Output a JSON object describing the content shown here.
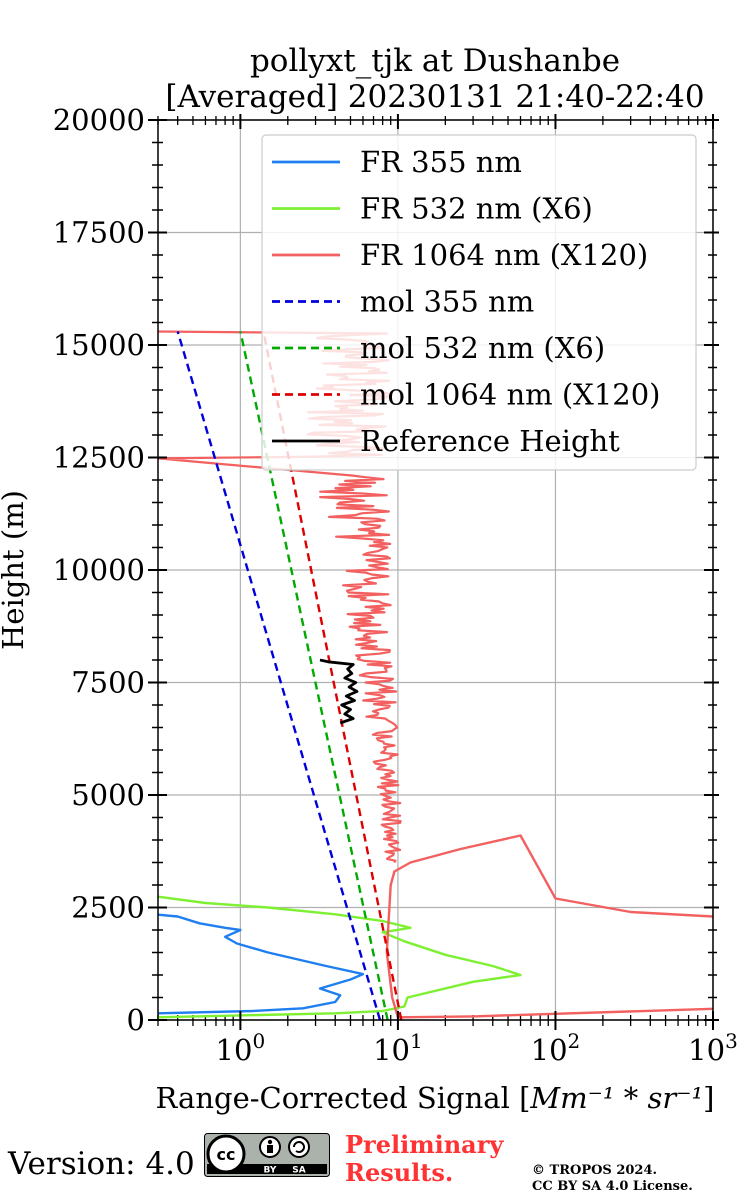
{
  "chart_data": {
    "type": "line",
    "title_line1": "pollyxt_tjk at Dushanbe",
    "title_line2": "[Averaged] 20230131 21:40-22:40",
    "xlabel_text": "Range-Corrected Signal [",
    "xlabel_units": "Mm⁻¹ * sr⁻¹",
    "xlabel_close": "]",
    "ylabel": "Height (m)",
    "xscale": "log",
    "xlim": [
      0.3,
      1000
    ],
    "ylim": [
      0,
      20000
    ],
    "x_ticks": [
      {
        "value": 1,
        "base": "10",
        "exp": "0"
      },
      {
        "value": 10,
        "base": "10",
        "exp": "1"
      },
      {
        "value": 100,
        "base": "10",
        "exp": "2"
      },
      {
        "value": 1000,
        "base": "10",
        "exp": "3"
      }
    ],
    "y_ticks": [
      "0",
      "2500",
      "5000",
      "7500",
      "10000",
      "12500",
      "15000",
      "17500",
      "20000"
    ],
    "grid": true,
    "legend_position": "upper-right",
    "series": [
      {
        "name": "FR 355 nm",
        "color": "#1f7ff0",
        "style": "solid",
        "points": [
          [
            0.3,
            150
          ],
          [
            1.2,
            200
          ],
          [
            2.5,
            260
          ],
          [
            4.0,
            400
          ],
          [
            4.3,
            550
          ],
          [
            3.2,
            700
          ],
          [
            5.0,
            900
          ],
          [
            6.0,
            1020
          ],
          [
            3.5,
            1200
          ],
          [
            1.5,
            1500
          ],
          [
            0.95,
            1700
          ],
          [
            0.8,
            1850
          ],
          [
            1.0,
            2000
          ],
          [
            0.8,
            2050
          ],
          [
            0.55,
            2150
          ],
          [
            0.4,
            2300
          ],
          [
            0.3,
            2340
          ]
        ]
      },
      {
        "name": "FR 532 nm (X6)",
        "color": "#7ef032",
        "style": "solid",
        "points": [
          [
            0.3,
            60
          ],
          [
            4.0,
            150
          ],
          [
            8.0,
            200
          ],
          [
            11.0,
            300
          ],
          [
            11.5,
            500
          ],
          [
            30.0,
            850
          ],
          [
            60.0,
            1000
          ],
          [
            40.0,
            1200
          ],
          [
            20.0,
            1450
          ],
          [
            11.0,
            1750
          ],
          [
            8.0,
            1950
          ],
          [
            12.0,
            2050
          ],
          [
            8.0,
            2200
          ],
          [
            4.0,
            2350
          ],
          [
            1.5,
            2500
          ],
          [
            0.6,
            2600
          ],
          [
            0.3,
            2740
          ]
        ]
      },
      {
        "name": "FR 1064 nm (X120)",
        "color": "#f26060",
        "style": "solid",
        "points": [
          [
            1000,
            250
          ],
          [
            30,
            80
          ],
          [
            10,
            60
          ],
          [
            9.2,
            500
          ],
          [
            8.5,
            1500
          ],
          [
            9.0,
            3000
          ],
          [
            9.5,
            3300
          ],
          [
            12,
            3500
          ],
          [
            25,
            3800
          ],
          [
            60,
            4100
          ],
          [
            100,
            2700
          ],
          [
            300,
            2400
          ],
          [
            1000,
            2300
          ]
        ]
      },
      {
        "name": "mol 355 nm",
        "color": "#0000dd",
        "style": "dashed",
        "points": [
          [
            7.7,
            0
          ],
          [
            0.4,
            15300
          ]
        ]
      },
      {
        "name": "mol 532 nm (X6)",
        "color": "#00aa00",
        "style": "dashed",
        "points": [
          [
            8.6,
            0
          ],
          [
            1.0,
            15300
          ]
        ]
      },
      {
        "name": "mol 1064 nm (X120)",
        "color": "#dd0000",
        "style": "dashed",
        "points": [
          [
            10.5,
            0
          ],
          [
            1.4,
            15300
          ]
        ]
      },
      {
        "name": "Reference Height",
        "color": "#000000",
        "style": "solid",
        "points": [
          [
            4.3,
            6600
          ],
          [
            5.2,
            6700
          ],
          [
            4.6,
            6800
          ],
          [
            5.0,
            6900
          ],
          [
            4.4,
            7000
          ],
          [
            5.3,
            7100
          ],
          [
            4.7,
            7200
          ],
          [
            5.5,
            7300
          ],
          [
            4.9,
            7400
          ],
          [
            5.4,
            7500
          ],
          [
            4.6,
            7600
          ],
          [
            5.1,
            7700
          ],
          [
            4.8,
            7800
          ],
          [
            5.2,
            7900
          ],
          [
            3.6,
            7960
          ],
          [
            3.2,
            8000
          ]
        ]
      }
    ]
  },
  "footer": {
    "version": "Version: 4.0",
    "license_badge": {
      "left": "cc",
      "by": "BY",
      "sa": "SA"
    },
    "preliminary_line1": "Preliminary",
    "preliminary_line2": "Results.",
    "copyright_line1": "© TROPOS 2024.",
    "copyright_line2": "CC BY SA 4.0 License."
  }
}
